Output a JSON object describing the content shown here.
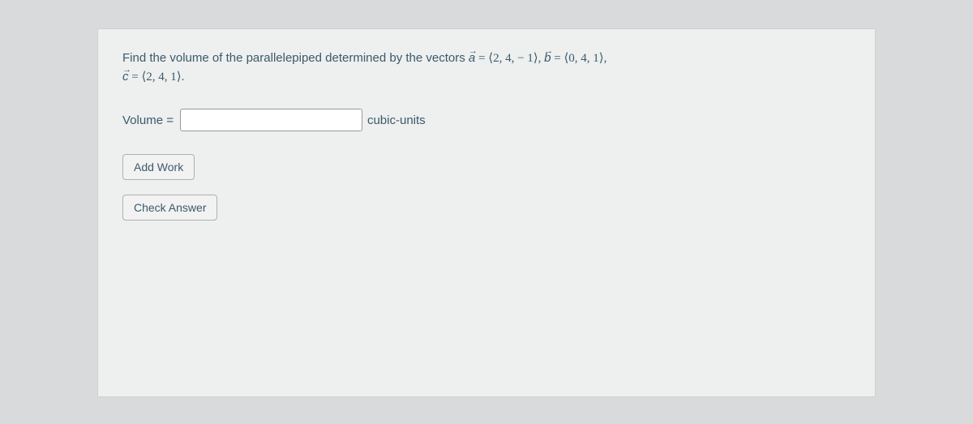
{
  "problem": {
    "text_part1": "Find the volume of the parallelepiped determined by the vectors ",
    "vec_a_name": "a",
    "vec_a_value": " = ⟨2, 4, − 1⟩, ",
    "vec_b_name": "b",
    "vec_b_value": " = ⟨0, 4, 1⟩,",
    "vec_c_name": "c",
    "vec_c_value": " = ⟨2, 4, 1⟩."
  },
  "answer": {
    "label": "Volume =",
    "input_value": "",
    "units": "cubic-units"
  },
  "buttons": {
    "add_work": "Add Work",
    "check_answer": "Check Answer"
  },
  "colors": {
    "page_bg": "#d9dadb",
    "box_bg": "#eeefef",
    "text": "#3a5a6a",
    "input_border": "#999",
    "button_bg": "#f2f2f2",
    "button_border": "#b0b0b0"
  }
}
